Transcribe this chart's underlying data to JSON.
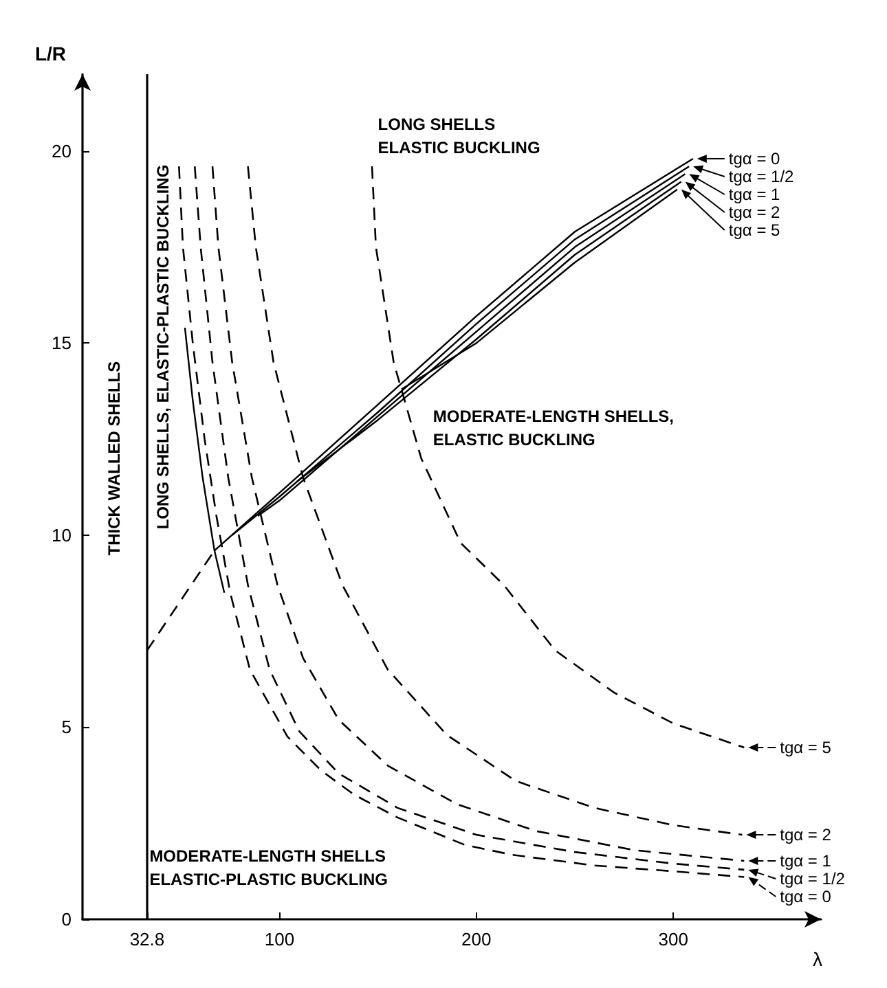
{
  "chart_data": {
    "type": "line",
    "xlabel": "λ",
    "ylabel": "L/R",
    "xlim": [
      0,
      375
    ],
    "ylim": [
      0,
      22
    ],
    "xticks": [
      32.8,
      100,
      200,
      300
    ],
    "yticks": [
      0,
      5,
      10,
      15,
      20
    ],
    "grid": false,
    "legend": "right",
    "marker": "none",
    "ref_lines": [
      {
        "axis": "x",
        "value": 32.8,
        "color": "#000000",
        "line_style": "solid"
      }
    ],
    "annotations": [
      "LONG SHELLS\nELASTIC BUCKLING",
      "MODERATE-LENGTH SHELLS,\nELASTIC BUCKLING",
      "THICK WALLED SHELLS",
      "LONG SHELLS, ELASTIC-PLASTIC BUCKLING",
      "MODERATE-LENGTH SHELLS\nELASTIC-PLASTIC BUCKLING"
    ],
    "series": [
      {
        "color": "#000000",
        "line_style": "dashed",
        "x": [
          32.8,
          67
        ],
        "values": [
          7.0,
          9.6
        ]
      },
      {
        "name": "tgα = 0",
        "color": "#000000",
        "line_style": "solid",
        "x": [
          67,
          100,
          150,
          200,
          250,
          310
        ],
        "values": [
          9.6,
          11.1,
          13.4,
          15.7,
          17.9,
          19.8
        ]
      },
      {
        "name": "tgα = 1/2",
        "color": "#000000",
        "line_style": "solid",
        "x": [
          76,
          100,
          150,
          200,
          250,
          308
        ],
        "values": [
          10.0,
          11.0,
          13.2,
          15.5,
          17.7,
          19.6
        ]
      },
      {
        "name": "tgα = 1",
        "color": "#000000",
        "line_style": "solid",
        "x": [
          89,
          100,
          150,
          200,
          250,
          306
        ],
        "values": [
          10.5,
          10.9,
          13.1,
          15.3,
          17.5,
          19.4
        ]
      },
      {
        "name": "tgα = 2",
        "color": "#000000",
        "line_style": "solid",
        "x": [
          109,
          150,
          200,
          250,
          304
        ],
        "values": [
          11.4,
          13.0,
          15.1,
          17.3,
          19.2
        ]
      },
      {
        "name": "tgα = 5",
        "color": "#000000",
        "line_style": "solid",
        "x": [
          162,
          200,
          250,
          302
        ],
        "values": [
          13.8,
          15.0,
          17.1,
          19.0
        ]
      },
      {
        "color": "#000000",
        "line_style": "solid",
        "x": [
          52,
          56,
          61,
          67,
          72
        ],
        "values": [
          15.4,
          13.5,
          11.5,
          9.6,
          8.5
        ]
      },
      {
        "name": "tgα = 5",
        "color": "#000000",
        "line_style": "dashed",
        "x": [
          147,
          149,
          158,
          172,
          192,
          214,
          240,
          270,
          300,
          336
        ],
        "values": [
          19.6,
          17.5,
          14.5,
          12.0,
          9.8,
          8.7,
          7.0,
          5.9,
          5.1,
          4.47
        ]
      },
      {
        "name": "tgα = 2",
        "color": "#000000",
        "line_style": "dashed",
        "x": [
          84,
          88,
          97,
          112,
          132,
          155,
          185,
          220,
          260,
          300,
          335
        ],
        "values": [
          19.6,
          17.5,
          14.5,
          11.5,
          8.7,
          6.5,
          4.8,
          3.6,
          2.9,
          2.45,
          2.2
        ]
      },
      {
        "name": "tgα = 1",
        "color": "#000000",
        "line_style": "dashed",
        "x": [
          66,
          69,
          76,
          86,
          99,
          112,
          130,
          155,
          190,
          230,
          280,
          336
        ],
        "values": [
          19.6,
          17.5,
          14.5,
          11.5,
          8.7,
          6.8,
          5.2,
          4.0,
          3.0,
          2.3,
          1.8,
          1.52
        ]
      },
      {
        "name": "tgα = 1/2",
        "color": "#000000",
        "line_style": "dashed",
        "x": [
          57,
          60,
          66,
          74,
          84,
          95,
          110,
          130,
          160,
          200,
          250,
          300,
          336
        ],
        "values": [
          19.6,
          17.5,
          14.5,
          11.5,
          8.7,
          6.5,
          4.9,
          3.8,
          2.9,
          2.2,
          1.75,
          1.45,
          1.29
        ]
      },
      {
        "name": "tgα = 0",
        "color": "#000000",
        "line_style": "dashed",
        "x": [
          49,
          51,
          56,
          62,
          68,
          75,
          85,
          104,
          121,
          138,
          160,
          194,
          218,
          260,
          300,
          336
        ],
        "values": [
          19.6,
          17.5,
          15.0,
          12.5,
          10.5,
          8.5,
          6.5,
          4.76,
          3.88,
          3.24,
          2.65,
          1.94,
          1.68,
          1.4,
          1.25,
          1.1
        ]
      }
    ]
  }
}
